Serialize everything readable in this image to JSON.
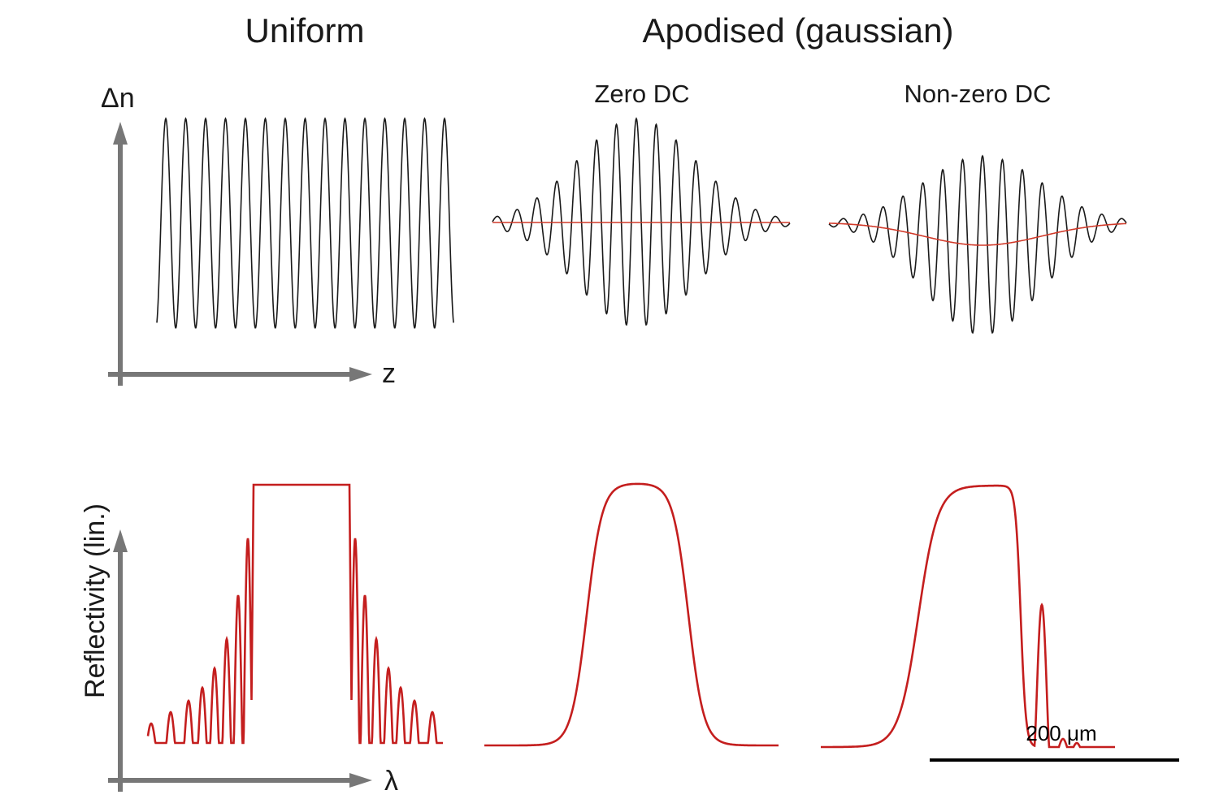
{
  "headers": {
    "uniform": "Uniform",
    "apodised": "Apodised (gaussian)",
    "zero_dc": "Zero DC",
    "nonzero_dc": "Non-zero DC"
  },
  "axes": {
    "top_y": "Δn",
    "top_x": "z",
    "bottom_y": "Reflectivity (lin.)",
    "bottom_x": "λ"
  },
  "scale_bar": {
    "label": "200 μm"
  },
  "colors": {
    "index_wave": "#1a1a1a",
    "dc_envelope": "#d13a2a",
    "reflectivity": "#c41e1e",
    "axis": "#777777",
    "scale_bar": "#000000"
  }
}
